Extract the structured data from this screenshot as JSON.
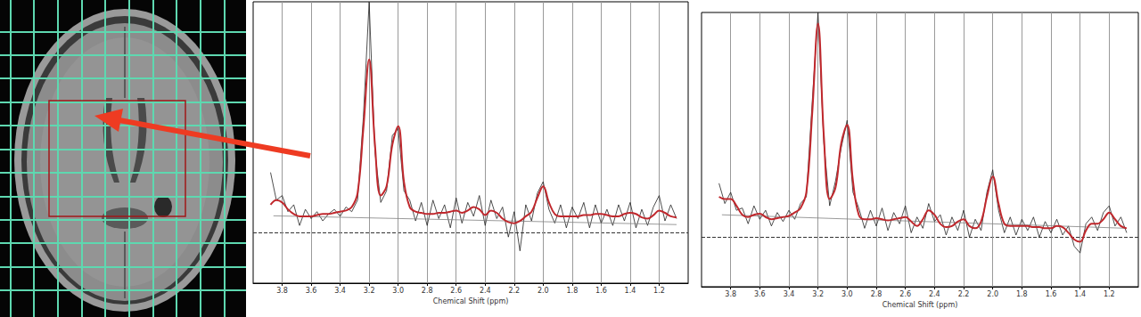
{
  "chart_data": [
    {
      "type": "line",
      "x_label": "Chemical Shift (ppm)",
      "x": [
        3.88,
        3.84,
        3.8,
        3.76,
        3.72,
        3.68,
        3.64,
        3.6,
        3.56,
        3.52,
        3.48,
        3.44,
        3.4,
        3.36,
        3.32,
        3.28,
        3.24,
        3.2,
        3.16,
        3.12,
        3.08,
        3.04,
        3,
        2.96,
        2.92,
        2.88,
        2.84,
        2.8,
        2.76,
        2.72,
        2.68,
        2.64,
        2.6,
        2.56,
        2.52,
        2.48,
        2.44,
        2.4,
        2.36,
        2.32,
        2.28,
        2.24,
        2.2,
        2.16,
        2.12,
        2.08,
        2.04,
        2,
        1.96,
        1.92,
        1.88,
        1.84,
        1.8,
        1.76,
        1.72,
        1.68,
        1.64,
        1.6,
        1.56,
        1.52,
        1.48,
        1.44,
        1.4,
        1.36,
        1.32,
        1.28,
        1.24,
        1.2,
        1.16,
        1.12,
        1.08
      ],
      "xlim": [
        4.0,
        1.0
      ],
      "xticks": [
        3.8,
        3.6,
        3.4,
        3.2,
        {
          "value": 3,
          "label": "3.0"
        },
        2.8,
        2.6,
        2.4,
        2.2,
        {
          "value": 2,
          "label": "2.0"
        },
        1.8,
        1.6,
        1.4,
        1.2
      ],
      "ylim": [
        -22,
        100
      ],
      "yticks": [
        0
      ],
      "grid": true,
      "tick_labels": "x",
      "series": [
        {
          "type": "line",
          "color": "#222222",
          "line_style": "solid",
          "marker": "none",
          "values": [
            26,
            14,
            16,
            9,
            12,
            3,
            10,
            6,
            9,
            5,
            8,
            10,
            7,
            11,
            9,
            14,
            50,
            100,
            35,
            13,
            18,
            42,
            45,
            18,
            14,
            5,
            13,
            3,
            14,
            6,
            12,
            2,
            15,
            4,
            13,
            7,
            16,
            3,
            14,
            6,
            11,
            -2,
            9,
            -8,
            12,
            5,
            17,
            22,
            10,
            4,
            12,
            2,
            11,
            6,
            13,
            2,
            12,
            4,
            10,
            3,
            12,
            5,
            13,
            2,
            10,
            3,
            11,
            16,
            5,
            12,
            6
          ]
        },
        {
          "type": "spline",
          "color": "#c0282d",
          "line_style": "solid",
          "marker": "none",
          "values": [
            12,
            14,
            13,
            10,
            8,
            7,
            7,
            7,
            7.5,
            8,
            8,
            8.5,
            9,
            9.5,
            11,
            17,
            45,
            75,
            38,
            16,
            20,
            38,
            46,
            22,
            11,
            9,
            8.5,
            8,
            8,
            8.5,
            8.5,
            9,
            9.5,
            8.5,
            9.5,
            11,
            10,
            7.5,
            9.5,
            8.5,
            6,
            4.5,
            4,
            5,
            7,
            9,
            15,
            20,
            13,
            8,
            7,
            7,
            7,
            7,
            7.5,
            7.5,
            8,
            8,
            7.5,
            7,
            7,
            8,
            8.5,
            8,
            6.5,
            6,
            7.5,
            9.5,
            8.5,
            7,
            6.5
          ]
        },
        {
          "type": "line",
          "color": "#808080",
          "line_style": "solid",
          "marker": "none",
          "x": [
            3.86,
            1.08
          ],
          "values": [
            7.2,
            3.4
          ]
        }
      ]
    },
    {
      "type": "line",
      "x_label": "Chemical Shift (ppm)",
      "x": [
        3.88,
        3.84,
        3.8,
        3.76,
        3.72,
        3.68,
        3.64,
        3.6,
        3.56,
        3.52,
        3.48,
        3.44,
        3.4,
        3.36,
        3.32,
        3.28,
        3.24,
        3.2,
        3.16,
        3.12,
        3.08,
        3.04,
        3,
        2.96,
        2.92,
        2.88,
        2.84,
        2.8,
        2.76,
        2.72,
        2.68,
        2.64,
        2.6,
        2.56,
        2.52,
        2.48,
        2.44,
        2.4,
        2.36,
        2.32,
        2.28,
        2.24,
        2.2,
        2.16,
        2.12,
        2.08,
        2.04,
        2,
        1.96,
        1.92,
        1.88,
        1.84,
        1.8,
        1.76,
        1.72,
        1.68,
        1.64,
        1.6,
        1.56,
        1.52,
        1.48,
        1.44,
        1.4,
        1.36,
        1.32,
        1.28,
        1.24,
        1.2,
        1.16,
        1.12,
        1.08
      ],
      "xlim": [
        4.0,
        1.0
      ],
      "xticks": [
        3.8,
        3.6,
        3.4,
        3.2,
        {
          "value": 3,
          "label": "3.0"
        },
        2.8,
        2.6,
        2.4,
        2.2,
        {
          "value": 2,
          "label": "2.0"
        },
        1.8,
        1.6,
        1.4,
        1.2
      ],
      "ylim": [
        -22,
        100
      ],
      "yticks": [
        0
      ],
      "grid": true,
      "tick_labels": "x",
      "series": [
        {
          "type": "line",
          "color": "#222222",
          "line_style": "solid",
          "marker": "none",
          "values": [
            24,
            15,
            20,
            12,
            13,
            6,
            14,
            8,
            12,
            5,
            11,
            7,
            12,
            8,
            15,
            18,
            60,
            100,
            42,
            14,
            25,
            40,
            52,
            20,
            13,
            4,
            12,
            5,
            13,
            3,
            11,
            6,
            14,
            2,
            9,
            4,
            15,
            7,
            10,
            1,
            9,
            3,
            12,
            0,
            8,
            3,
            20,
            30,
            12,
            2,
            9,
            1,
            8,
            3,
            9,
            0,
            7,
            2,
            8,
            1,
            5,
            -4,
            -7,
            6,
            9,
            3,
            11,
            14,
            5,
            9,
            2
          ]
        },
        {
          "type": "spline",
          "color": "#c0282d",
          "line_style": "solid",
          "marker": "none",
          "values": [
            18,
            17,
            17,
            14,
            10,
            9,
            10,
            10.5,
            9,
            8,
            8.5,
            9,
            9.5,
            11,
            13,
            20,
            55,
            95,
            45,
            17,
            22,
            42,
            50,
            25,
            10,
            8,
            8,
            8.5,
            8,
            7.5,
            8,
            8.5,
            9,
            7,
            5,
            8,
            12,
            10,
            6,
            4.5,
            5,
            7,
            8,
            5,
            4,
            7,
            18,
            27,
            15,
            6,
            5,
            5,
            5,
            5,
            4.5,
            4.5,
            4,
            4,
            5,
            4.5,
            2,
            -1,
            -2,
            3,
            6,
            6,
            8,
            11,
            8,
            5,
            4
          ]
        },
        {
          "type": "line",
          "color": "#808080",
          "line_style": "solid",
          "marker": "none",
          "x": [
            3.86,
            1.08
          ],
          "values": [
            10,
            4
          ]
        }
      ]
    }
  ]
}
